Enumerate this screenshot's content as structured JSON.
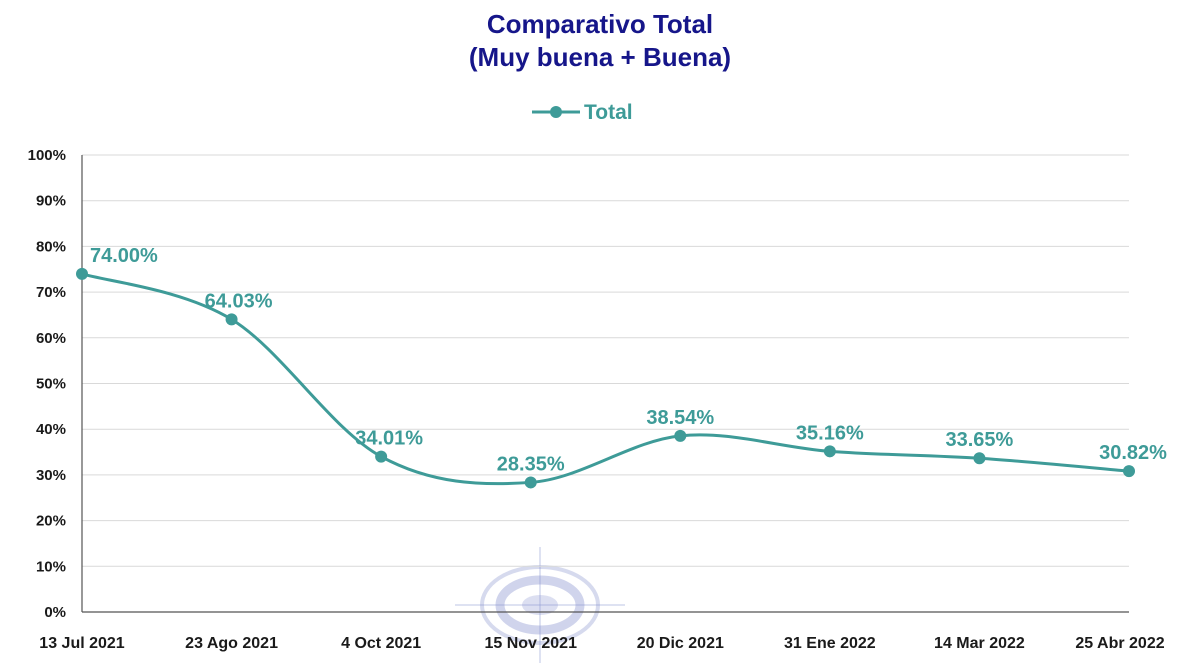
{
  "colors": {
    "series": "#3e9b98",
    "title": "#16168a",
    "grid": "#d9d9d9",
    "axis": "#555555",
    "watermark": "#8a94cf"
  },
  "watermark_icon": "circular-logo-watermark-icon",
  "chart_data": {
    "type": "line",
    "title_lines": [
      "Comparativo Total",
      "(Muy buena + Buena)"
    ],
    "xlabel": "",
    "ylabel": "",
    "categories": [
      "13 Jul 2021",
      "23 Ago 2021",
      "4 Oct 2021",
      "15 Nov 2021",
      "20 Dic 2021",
      "31 Ene 2022",
      "14 Mar 2022",
      "25 Abr 2022"
    ],
    "series": [
      {
        "name": "Total",
        "values": [
          74.0,
          64.03,
          34.01,
          28.35,
          38.54,
          35.16,
          33.65,
          30.82
        ],
        "labels": [
          "74.00%",
          "64.03%",
          "34.01%",
          "28.35%",
          "38.54%",
          "35.16%",
          "33.65%",
          "30.82%"
        ]
      }
    ],
    "ylim": [
      0,
      100
    ],
    "yticks": [
      0,
      10,
      20,
      30,
      40,
      50,
      60,
      70,
      80,
      90,
      100
    ],
    "ytick_labels": [
      "0%",
      "10%",
      "20%",
      "30%",
      "40%",
      "50%",
      "60%",
      "70%",
      "80%",
      "90%",
      "100%"
    ],
    "grid": true,
    "smooth": true,
    "legend": "top-center"
  }
}
